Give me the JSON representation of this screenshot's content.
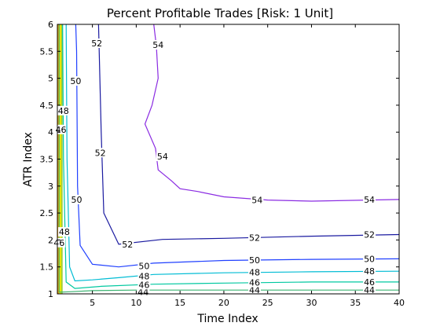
{
  "chart_data": {
    "type": "contour",
    "title": "Percent Profitable Trades [Risk: 1 Unit]",
    "xlabel": "Time Index",
    "ylabel": "ATR Index",
    "xlim": [
      1,
      40
    ],
    "ylim": [
      1,
      6
    ],
    "x_ticks": [
      "5",
      "10",
      "15",
      "20",
      "25",
      "30",
      "35",
      "40"
    ],
    "y_ticks": [
      "1",
      "1.5",
      "2",
      "2.5",
      "3",
      "3.5",
      "4",
      "4.5",
      "5",
      "5.5",
      "6"
    ],
    "grid": false,
    "legend": "none",
    "contours": [
      {
        "level": 44,
        "color": "#3cb371",
        "line": [
          [
            40,
            1.07
          ],
          [
            30,
            1.07
          ],
          [
            20,
            1.07
          ],
          [
            10,
            1.07
          ],
          [
            5,
            1.06
          ],
          [
            2.5,
            1.04
          ],
          [
            1.2,
            1.03
          ],
          [
            1.2,
            6
          ]
        ],
        "labels": [
          {
            "text": "44",
            "x": 10.8,
            "y": 1.04
          },
          {
            "text": "44",
            "x": 23.5,
            "y": 1.07
          },
          {
            "text": "44",
            "x": 36.6,
            "y": 1.07
          }
        ]
      },
      {
        "level": 46,
        "color": "#00c8a0",
        "line": [
          [
            40,
            1.22
          ],
          [
            30,
            1.22
          ],
          [
            20,
            1.2
          ],
          [
            12,
            1.18
          ],
          [
            6,
            1.14
          ],
          [
            3,
            1.1
          ],
          [
            2,
            1.22
          ],
          [
            1.7,
            3.5
          ],
          [
            1.6,
            6
          ]
        ],
        "labels": [
          {
            "text": "46",
            "x": 10.9,
            "y": 1.17
          },
          {
            "text": "46",
            "x": 23.5,
            "y": 1.21
          },
          {
            "text": "46",
            "x": 36.6,
            "y": 1.22
          },
          {
            "text": "46",
            "x": 1.2,
            "y": 1.95
          },
          {
            "text": "46",
            "x": 1.4,
            "y": 4.05
          }
        ]
      },
      {
        "level": 48,
        "color": "#00bcd4",
        "line": [
          [
            40,
            1.42
          ],
          [
            30,
            1.41
          ],
          [
            20,
            1.39
          ],
          [
            12,
            1.36
          ],
          [
            8,
            1.3
          ],
          [
            5,
            1.26
          ],
          [
            3,
            1.24
          ],
          [
            2.4,
            1.5
          ],
          [
            2.1,
            3.5
          ],
          [
            2,
            6
          ]
        ],
        "labels": [
          {
            "text": "48",
            "x": 10.9,
            "y": 1.33
          },
          {
            "text": "48",
            "x": 23.5,
            "y": 1.4
          },
          {
            "text": "48",
            "x": 36.6,
            "y": 1.42
          },
          {
            "text": "48",
            "x": 1.8,
            "y": 2.15
          },
          {
            "text": "48",
            "x": 1.7,
            "y": 4.4
          }
        ]
      },
      {
        "level": 50,
        "color": "#2040ff",
        "line": [
          [
            40,
            1.65
          ],
          [
            30,
            1.64
          ],
          [
            20,
            1.62
          ],
          [
            12,
            1.57
          ],
          [
            8,
            1.5
          ],
          [
            5,
            1.55
          ],
          [
            3.6,
            1.9
          ],
          [
            3.3,
            3
          ],
          [
            3.2,
            5.5
          ],
          [
            3.1,
            6
          ]
        ],
        "labels": [
          {
            "text": "50",
            "x": 10.9,
            "y": 1.52
          },
          {
            "text": "50",
            "x": 23.5,
            "y": 1.63
          },
          {
            "text": "50",
            "x": 36.6,
            "y": 1.65
          },
          {
            "text": "50",
            "x": 3.2,
            "y": 2.75
          },
          {
            "text": "50",
            "x": 3.1,
            "y": 4.95
          }
        ]
      },
      {
        "level": 52,
        "color": "#1a1aa0",
        "line": [
          [
            40,
            2.1
          ],
          [
            30,
            2.07
          ],
          [
            20,
            2.03
          ],
          [
            13,
            2.01
          ],
          [
            8,
            1.92
          ],
          [
            6.3,
            2.5
          ],
          [
            6,
            4
          ],
          [
            5.7,
            6
          ]
        ],
        "labels": [
          {
            "text": "52",
            "x": 9,
            "y": 1.92
          },
          {
            "text": "52",
            "x": 23.5,
            "y": 2.04
          },
          {
            "text": "52",
            "x": 36.6,
            "y": 2.1
          },
          {
            "text": "52",
            "x": 5.9,
            "y": 3.62
          },
          {
            "text": "52",
            "x": 5.5,
            "y": 5.65
          }
        ]
      },
      {
        "level": 54,
        "color": "#8a2be2",
        "line": [
          [
            40,
            2.75
          ],
          [
            30,
            2.72
          ],
          [
            25,
            2.74
          ],
          [
            20,
            2.8
          ],
          [
            17,
            2.9
          ],
          [
            15,
            2.95
          ],
          [
            14,
            3.1
          ],
          [
            12.5,
            3.3
          ],
          [
            12.2,
            3.7
          ],
          [
            11,
            4.15
          ],
          [
            11.8,
            4.5
          ],
          [
            12.5,
            5
          ],
          [
            12.3,
            5.6
          ],
          [
            12,
            6
          ]
        ],
        "labels": [
          {
            "text": "54",
            "x": 23.8,
            "y": 2.74
          },
          {
            "text": "54",
            "x": 36.6,
            "y": 2.75
          },
          {
            "text": "54",
            "x": 13,
            "y": 3.55
          },
          {
            "text": "54",
            "x": 12.5,
            "y": 5.62
          }
        ]
      }
    ],
    "edge_bands": [
      {
        "x0": 1,
        "x1": 1.2,
        "color": "#ffa500"
      },
      {
        "x0": 1.2,
        "x1": 1.45,
        "color": "#e6e600"
      },
      {
        "x0": 1.45,
        "x1": 1.6,
        "color": "#9acd32"
      }
    ]
  }
}
